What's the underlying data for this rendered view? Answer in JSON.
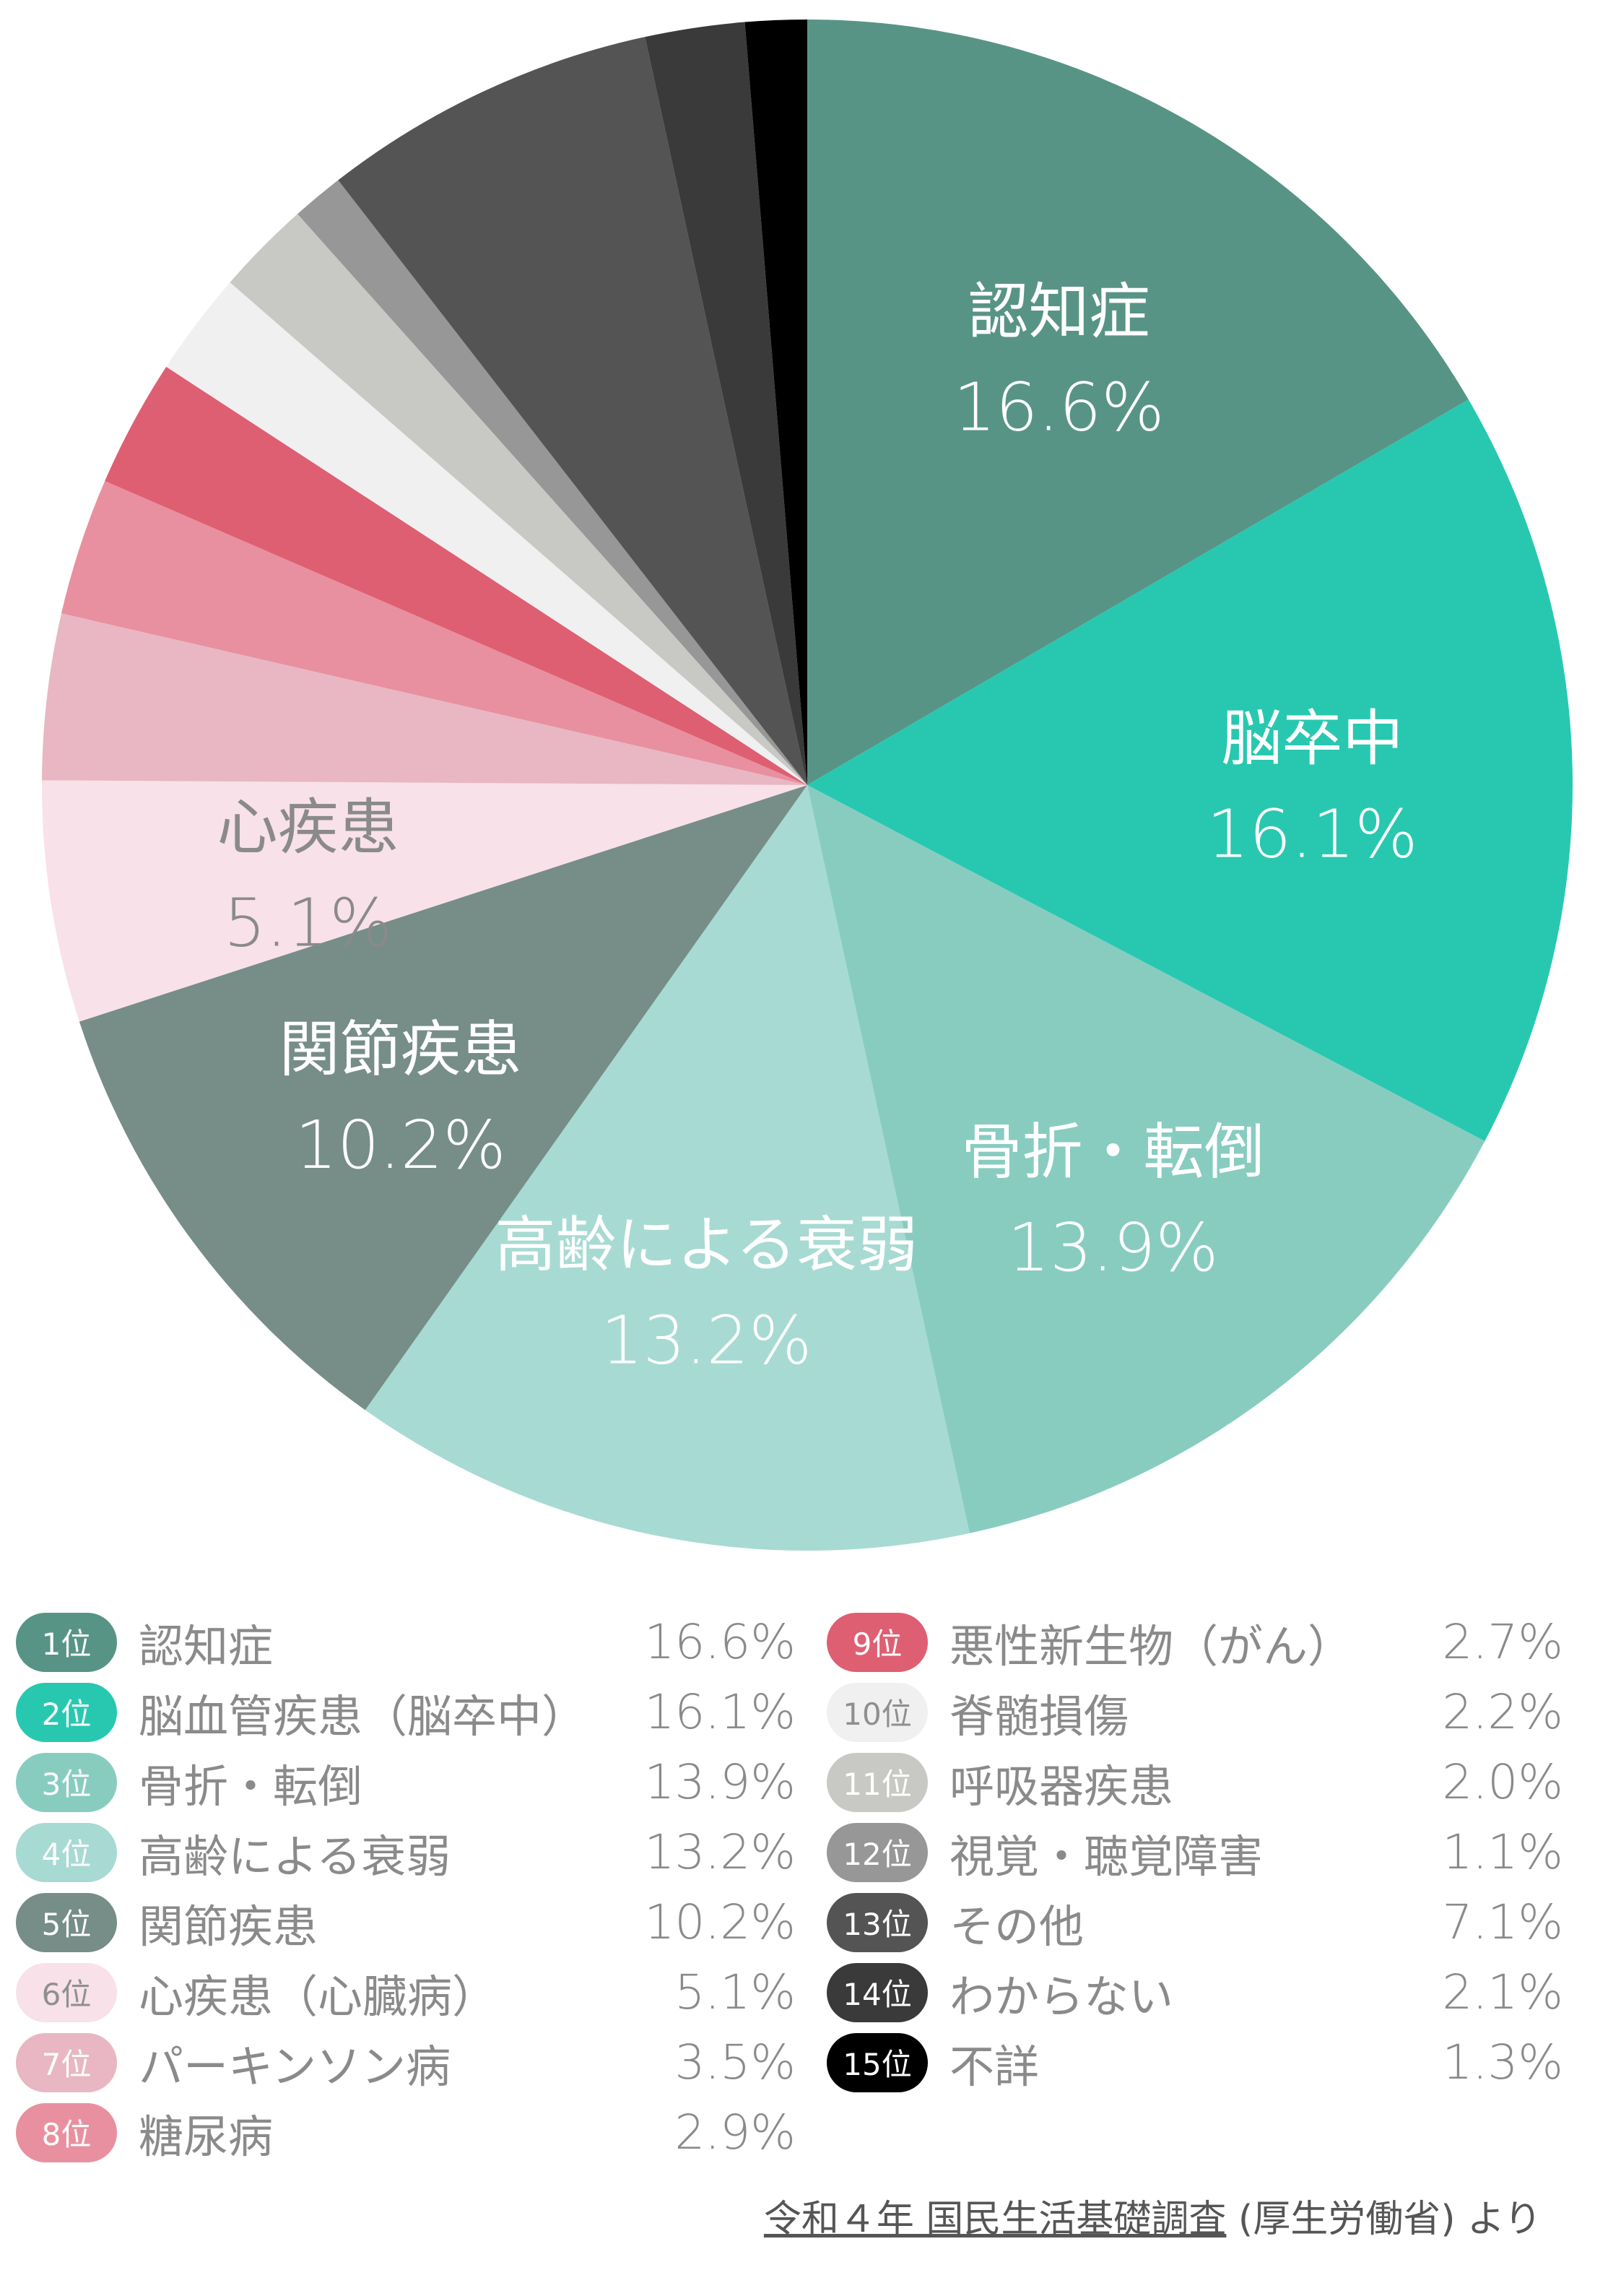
{
  "chart_data": {
    "type": "pie",
    "slices": [
      {
        "rank": "1位",
        "label": "認知症",
        "full_label": "認知症",
        "value": 16.6,
        "pct_text": "16.6%",
        "color": "#589485",
        "text_color": "#ffffff",
        "badge_color": "#589485"
      },
      {
        "rank": "2位",
        "label": "脳卒中",
        "full_label": "脳血管疾患（脳卒中）",
        "value": 16.1,
        "pct_text": "16.1%",
        "color": "#28c8b0",
        "text_color": "#ffffff",
        "badge_color": "#28c8b0"
      },
      {
        "rank": "3位",
        "label": "骨折・転倒",
        "full_label": "骨折・転倒",
        "value": 13.9,
        "pct_text": "13.9%",
        "color": "#88ccc0",
        "text_color": "#ffffff",
        "badge_color": "#88ccc0"
      },
      {
        "rank": "4位",
        "label": "高齢による衰弱",
        "full_label": "高齢による衰弱",
        "value": 13.2,
        "pct_text": "13.2%",
        "color": "#a7dad2",
        "text_color": "#ffffff",
        "badge_color": "#a7dad2"
      },
      {
        "rank": "5位",
        "label": "関節疾患",
        "full_label": "関節疾患",
        "value": 10.2,
        "pct_text": "10.2%",
        "color": "#768d88",
        "text_color": "#ffffff",
        "badge_color": "#768d88"
      },
      {
        "rank": "6位",
        "label": "心疾患",
        "full_label": "心疾患（心臓病）",
        "value": 5.1,
        "pct_text": "5.1%",
        "color": "#f8e1e8",
        "text_color": "#8a8a8a",
        "badge_color": "#f8e1e8"
      },
      {
        "rank": "7位",
        "label": "",
        "full_label": "パーキンソン病",
        "value": 3.5,
        "pct_text": "3.5%",
        "color": "#e8b7c3",
        "text_color": "#ffffff",
        "badge_color": "#e8b7c3"
      },
      {
        "rank": "8位",
        "label": "",
        "full_label": "糖尿病",
        "value": 2.9,
        "pct_text": "2.9%",
        "color": "#e8909f",
        "text_color": "#ffffff",
        "badge_color": "#e8909f"
      },
      {
        "rank": "9位",
        "label": "",
        "full_label": "悪性新生物（がん）",
        "value": 2.7,
        "pct_text": "2.7%",
        "color": "#de5f72",
        "text_color": "#ffffff",
        "badge_color": "#de5f72"
      },
      {
        "rank": "10位",
        "label": "",
        "full_label": "脊髄損傷",
        "value": 2.2,
        "pct_text": "2.2%",
        "color": "#f0f0f0",
        "text_color": "#ffffff",
        "badge_color": "#f0f0f0"
      },
      {
        "rank": "11位",
        "label": "",
        "full_label": "呼吸器疾患",
        "value": 2.0,
        "pct_text": "2.0%",
        "color": "#c8c8c4",
        "text_color": "#ffffff",
        "badge_color": "#c8c8c4"
      },
      {
        "rank": "12位",
        "label": "",
        "full_label": "視覚・聴覚障害",
        "value": 1.1,
        "pct_text": "1.1%",
        "color": "#979797",
        "text_color": "#ffffff",
        "badge_color": "#979797"
      },
      {
        "rank": "13位",
        "label": "",
        "full_label": "その他",
        "value": 7.1,
        "pct_text": "7.1%",
        "color": "#545454",
        "text_color": "#ffffff",
        "badge_color": "#545454"
      },
      {
        "rank": "14位",
        "label": "",
        "full_label": "わからない",
        "value": 2.1,
        "pct_text": "2.1%",
        "color": "#3a3a3a",
        "text_color": "#ffffff",
        "badge_color": "#3a3a3a"
      },
      {
        "rank": "15位",
        "label": "",
        "full_label": "不詳",
        "value": 1.3,
        "pct_text": "1.3%",
        "color": "#000000",
        "text_color": "#ffffff",
        "badge_color": "#000000"
      }
    ]
  },
  "source": {
    "link_text": "令和４年 国民生活基礎調査",
    "suffix_text": " (厚生労働省) より"
  }
}
